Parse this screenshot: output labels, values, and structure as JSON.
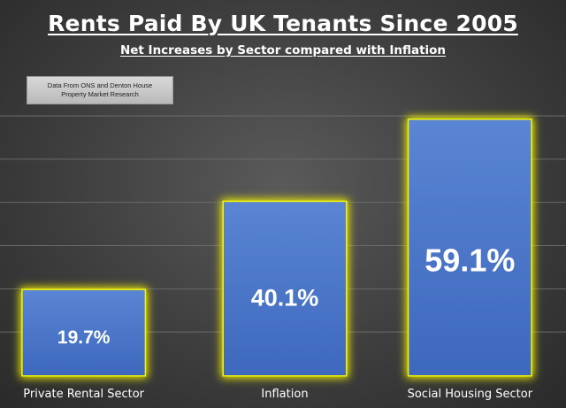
{
  "chart_data": {
    "type": "bar",
    "title": "Rents Paid By UK Tenants Since 2005",
    "subtitle": "Net Increases by Sector compared with Inflation",
    "source_note": "Data From ONS  and Denton House\nProperty Market Research",
    "categories": [
      "Private Rental Sector",
      "Inflation",
      "Social Housing Sector"
    ],
    "values": [
      19.7,
      40.1,
      59.1
    ],
    "value_labels": [
      "19.7%",
      "40.1%",
      "59.1%"
    ],
    "ylim": [
      0,
      60
    ],
    "grid": true,
    "legend": "none",
    "colors": {
      "bar_fill": "#4a78c9",
      "bar_glow": "#f5f500",
      "grid": "#6a6a6a",
      "text": "#ffffff"
    }
  }
}
